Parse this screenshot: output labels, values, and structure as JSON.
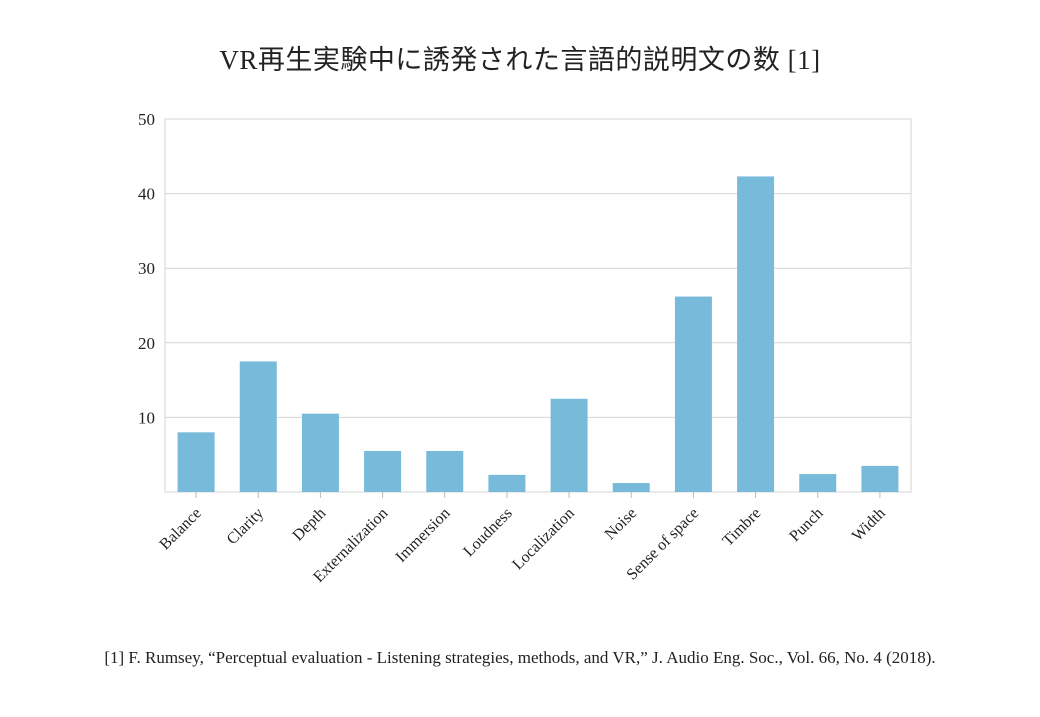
{
  "chart_data": {
    "type": "bar",
    "title": "VR再生実験中に誘発された言語的説明文の数 [1]",
    "xlabel": "",
    "ylabel": "",
    "ylim": [
      0,
      50
    ],
    "yticks": [
      10,
      20,
      30,
      40,
      50
    ],
    "grid": true,
    "categories": [
      "Balance",
      "Clarity",
      "Depth",
      "Externalization",
      "Immersion",
      "Loudness",
      "Localization",
      "Noise",
      "Sense of space",
      "Timbre",
      "Punch",
      "Width"
    ],
    "values": [
      8,
      17.5,
      10.5,
      5.5,
      5.5,
      2.3,
      12.5,
      1.2,
      26.2,
      42.3,
      2.4,
      3.5
    ],
    "bar_color": "#78bad9"
  },
  "citation": "[1] F. Rumsey, “Perceptual evaluation - Listening strategies, methods, and VR,” J. Audio Eng. Soc., Vol. 66, No. 4 (2018)."
}
